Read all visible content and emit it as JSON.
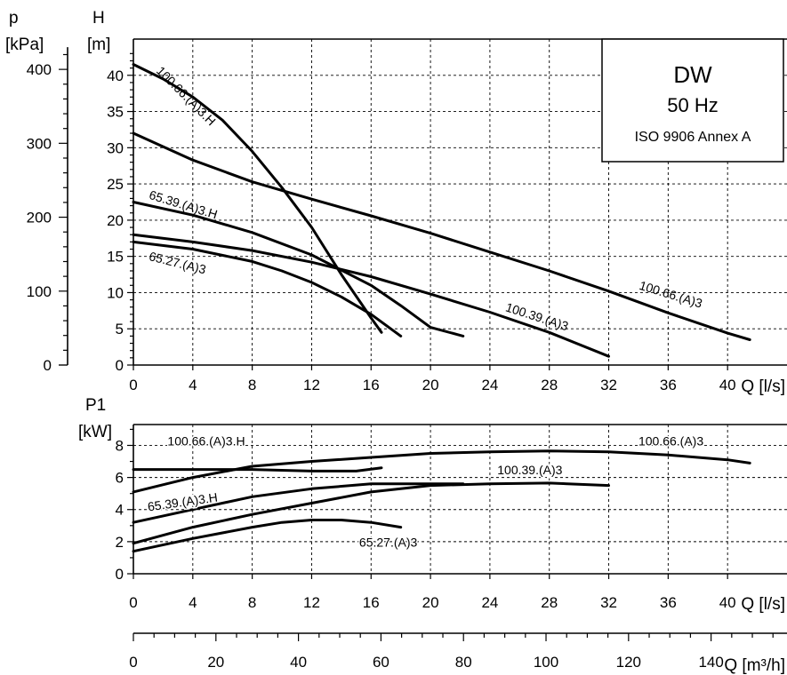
{
  "chart_data": [
    {
      "type": "line",
      "axes": {
        "left_outer_label": "p",
        "left_outer_unit": "[kPa]",
        "left_inner_label": "H",
        "left_inner_unit": "[m]",
        "x_label": "Q [l/s]"
      },
      "xlim": [
        0,
        44
      ],
      "ylim": [
        0,
        45
      ],
      "x_ticks": [
        0,
        4,
        8,
        12,
        16,
        20,
        24,
        28,
        32,
        36,
        40
      ],
      "y_ticks": [
        0,
        5,
        10,
        15,
        20,
        25,
        30,
        35,
        40
      ],
      "p_ticks": [
        0,
        100,
        200,
        300,
        400
      ],
      "p_per_m": 9.8,
      "grid": true,
      "legend": {
        "title": "DW",
        "line2": "50 Hz",
        "line3": "ISO 9906 Annex A",
        "placement": "top-right"
      },
      "series": [
        {
          "name": "100.66.(A)3.H",
          "label_at": [
            1.5,
            40.5
          ],
          "label_angle": 45,
          "points": [
            [
              0,
              41.5
            ],
            [
              2,
              39.5
            ],
            [
              4,
              37
            ],
            [
              6,
              33.8
            ],
            [
              8,
              29.5
            ],
            [
              10,
              24.5
            ],
            [
              12,
              19
            ],
            [
              14,
              12.5
            ],
            [
              16,
              6.5
            ],
            [
              16.7,
              4.5
            ]
          ]
        },
        {
          "name": "100.66.(A)3",
          "label_at": [
            34,
            10.5
          ],
          "label_angle": 17,
          "points": [
            [
              0,
              32
            ],
            [
              4,
              28.3
            ],
            [
              8,
              25.3
            ],
            [
              12,
              22.9
            ],
            [
              16,
              20.6
            ],
            [
              20,
              18.2
            ],
            [
              24,
              15.6
            ],
            [
              28,
              13
            ],
            [
              32,
              10.2
            ],
            [
              36,
              7.2
            ],
            [
              40,
              4.4
            ],
            [
              41.5,
              3.5
            ]
          ]
        },
        {
          "name": "65.39.(A)3.H",
          "label_at": [
            1,
            23
          ],
          "label_angle": 17,
          "points": [
            [
              0,
              22.5
            ],
            [
              4,
              20.7
            ],
            [
              8,
              18.3
            ],
            [
              12,
              15.2
            ],
            [
              16,
              11
            ],
            [
              18,
              8.2
            ],
            [
              20,
              5.2
            ],
            [
              22.2,
              4
            ]
          ]
        },
        {
          "name": "100.39.(A)3",
          "label_at": [
            25,
            7.5
          ],
          "label_angle": 18,
          "points": [
            [
              0,
              18
            ],
            [
              4,
              17
            ],
            [
              8,
              15.8
            ],
            [
              12,
              14.2
            ],
            [
              16,
              12.2
            ],
            [
              20,
              9.8
            ],
            [
              24,
              7.3
            ],
            [
              28,
              4.5
            ],
            [
              32,
              1.2
            ]
          ]
        },
        {
          "name": "65.27.(A)3",
          "label_at": [
            1,
            14.5
          ],
          "label_angle": 14,
          "points": [
            [
              0,
              17
            ],
            [
              4,
              16
            ],
            [
              8,
              14.3
            ],
            [
              10,
              13
            ],
            [
              12,
              11.4
            ],
            [
              14,
              9.4
            ],
            [
              16,
              7
            ],
            [
              18,
              4
            ]
          ]
        }
      ]
    },
    {
      "type": "line",
      "axes": {
        "left_label": "P1",
        "left_unit": "[kW]",
        "x_label": "Q [l/s]",
        "x2_label": "Q [m³/h]"
      },
      "xlim": [
        0,
        44
      ],
      "ylim": [
        0,
        9.3
      ],
      "x_ticks": [
        0,
        4,
        8,
        12,
        16,
        20,
        24,
        28,
        32,
        36,
        40
      ],
      "y_ticks": [
        0,
        2,
        4,
        6,
        8
      ],
      "x2_ticks": [
        0,
        20,
        40,
        60,
        80,
        100,
        120,
        140
      ],
      "l_per_s_per_m3_per_h": 0.27778,
      "grid": true,
      "series": [
        {
          "name": "100.66.(A)3.H",
          "label_at": [
            2.3,
            8
          ],
          "points": [
            [
              0,
              6.5
            ],
            [
              4,
              6.5
            ],
            [
              8,
              6.5
            ],
            [
              12,
              6.4
            ],
            [
              15,
              6.4
            ],
            [
              16.7,
              6.6
            ]
          ]
        },
        {
          "name": "100.66.(A)3",
          "label_at": [
            34,
            8
          ],
          "points": [
            [
              0,
              5.1
            ],
            [
              4,
              6
            ],
            [
              8,
              6.7
            ],
            [
              12,
              7
            ],
            [
              16,
              7.25
            ],
            [
              20,
              7.5
            ],
            [
              24,
              7.6
            ],
            [
              28,
              7.65
            ],
            [
              32,
              7.6
            ],
            [
              36,
              7.4
            ],
            [
              40,
              7.1
            ],
            [
              41.5,
              6.9
            ]
          ]
        },
        {
          "name": "65.39.(A)3.H",
          "label_at": [
            1,
            3.9
          ],
          "label_angle": -8,
          "points": [
            [
              0,
              3.2
            ],
            [
              4,
              4
            ],
            [
              8,
              4.8
            ],
            [
              12,
              5.3
            ],
            [
              16,
              5.6
            ],
            [
              20,
              5.6
            ],
            [
              22.2,
              5.6
            ]
          ]
        },
        {
          "name": "100.39.(A)3",
          "label_at": [
            24.5,
            6.2
          ],
          "points": [
            [
              0,
              1.9
            ],
            [
              4,
              2.9
            ],
            [
              8,
              3.7
            ],
            [
              12,
              4.4
            ],
            [
              16,
              5.1
            ],
            [
              20,
              5.5
            ],
            [
              24,
              5.6
            ],
            [
              28,
              5.65
            ],
            [
              32,
              5.5
            ]
          ]
        },
        {
          "name": "65.27.(A)3",
          "label_at": [
            15.2,
            1.7
          ],
          "points": [
            [
              0,
              1.4
            ],
            [
              4,
              2.2
            ],
            [
              8,
              2.9
            ],
            [
              10,
              3.2
            ],
            [
              12,
              3.35
            ],
            [
              14,
              3.35
            ],
            [
              16,
              3.2
            ],
            [
              18,
              2.9
            ]
          ]
        }
      ]
    }
  ]
}
